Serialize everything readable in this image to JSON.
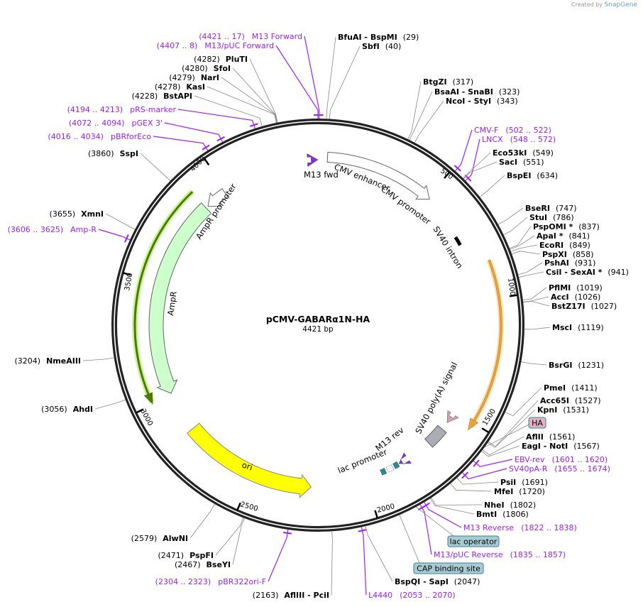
{
  "branding": {
    "created_by": "Created by",
    "logo": "SnapGene"
  },
  "plasmid": {
    "name": "pCMV-GABARα1N-HA",
    "length_label": "4421 bp",
    "length_bp": 4421
  },
  "ticks": [
    {
      "label": "500",
      "bp": 500
    },
    {
      "label": "1000",
      "bp": 1000
    },
    {
      "label": "1500",
      "bp": 1500
    },
    {
      "label": "2000",
      "bp": 2000
    },
    {
      "label": "2500",
      "bp": 2500
    },
    {
      "label": "3000",
      "bp": 3000
    },
    {
      "label": "3500",
      "bp": 3500
    },
    {
      "label": "4000",
      "bp": 4000
    }
  ],
  "labels": [
    {
      "type": "site",
      "name": "BfuAI  - BspMI",
      "pos": "(29)",
      "bp": 29
    },
    {
      "type": "site",
      "name": "SbfI",
      "pos": "(40)",
      "bp": 40
    },
    {
      "type": "site",
      "name": "BtgZI",
      "pos": "(317)",
      "bp": 317
    },
    {
      "type": "site",
      "name": "BsaAI  - SnaBI",
      "pos": "(323)",
      "bp": 323
    },
    {
      "type": "site",
      "name": "NcoI  - StyI",
      "pos": "(343)",
      "bp": 343
    },
    {
      "type": "primer",
      "name": "CMV-F",
      "pos": "(502 .. 522)",
      "bp": 512
    },
    {
      "type": "primer",
      "name": "LNCX",
      "pos": "(548 .. 572)",
      "bp": 560
    },
    {
      "type": "site",
      "name": "Eco53kI",
      "pos": "(549)",
      "bp": 549
    },
    {
      "type": "site",
      "name": "SacI",
      "pos": "(551)",
      "bp": 551
    },
    {
      "type": "site",
      "name": "BspEI",
      "pos": "(634)",
      "bp": 634
    },
    {
      "type": "site",
      "name": "BseRI",
      "pos": "(747)",
      "bp": 747
    },
    {
      "type": "site",
      "name": "StuI",
      "pos": "(786)",
      "bp": 786
    },
    {
      "type": "site",
      "name": "PspOMI *",
      "pos": "(837)",
      "bp": 837
    },
    {
      "type": "site",
      "name": "ApaI *",
      "pos": "(841)",
      "bp": 841
    },
    {
      "type": "site",
      "name": "EcoRI",
      "pos": "(849)",
      "bp": 849
    },
    {
      "type": "site",
      "name": "PspXI",
      "pos": "(858)",
      "bp": 858
    },
    {
      "type": "site",
      "name": "PshAI",
      "pos": "(931)",
      "bp": 931
    },
    {
      "type": "site",
      "name": "CsiI  - SexAI *",
      "pos": "(941)",
      "bp": 941
    },
    {
      "type": "site",
      "name": "PflMI",
      "pos": "(1019)",
      "bp": 1019
    },
    {
      "type": "site",
      "name": "AccI",
      "pos": "(1026)",
      "bp": 1026
    },
    {
      "type": "site",
      "name": "BstZ17I",
      "pos": "(1027)",
      "bp": 1027
    },
    {
      "type": "site",
      "name": "MscI",
      "pos": "(1119)",
      "bp": 1119
    },
    {
      "type": "site",
      "name": "BsrGI",
      "pos": "(1231)",
      "bp": 1231
    },
    {
      "type": "site",
      "name": "PmeI",
      "pos": "(1411)",
      "bp": 1411
    },
    {
      "type": "site",
      "name": "Acc65I",
      "pos": "(1527)",
      "bp": 1527
    },
    {
      "type": "site",
      "name": "KpnI",
      "pos": "(1531)",
      "bp": 1531
    },
    {
      "type": "site",
      "name": "AflII",
      "pos": "(1561)",
      "bp": 1561
    },
    {
      "type": "site",
      "name": "EagI  - NotI",
      "pos": "(1567)",
      "bp": 1567
    },
    {
      "type": "primer",
      "name": "EBV-rev",
      "pos": "(1601 .. 1620)",
      "bp": 1610
    },
    {
      "type": "primer",
      "name": "SV40pA-R",
      "pos": "(1655 .. 1674)",
      "bp": 1665
    },
    {
      "type": "site",
      "name": "PsiI",
      "pos": "(1691)",
      "bp": 1691
    },
    {
      "type": "site",
      "name": "MfeI",
      "pos": "(1720)",
      "bp": 1720
    },
    {
      "type": "site",
      "name": "NheI",
      "pos": "(1802)",
      "bp": 1802
    },
    {
      "type": "site",
      "name": "BmtI",
      "pos": "(1806)",
      "bp": 1806
    },
    {
      "type": "primer",
      "name": "M13 Reverse",
      "pos": "(1822 .. 1838)",
      "bp": 1830
    },
    {
      "type": "primer",
      "name": "M13/pUC Reverse",
      "pos": "(1835 .. 1857)",
      "bp": 1846
    },
    {
      "type": "site",
      "name": "BspQI  - SapI",
      "pos": "(2047)",
      "bp": 2047
    },
    {
      "type": "primer",
      "name": "L4440",
      "pos": "(2053 .. 2070)",
      "bp": 2061
    },
    {
      "type": "site",
      "name": "AflIII  - PciI",
      "pos": "(2163)",
      "bp": 2163
    },
    {
      "type": "primer",
      "name": "pBR322ori-F",
      "pos": "(2304 .. 2323)",
      "bp": 2313
    },
    {
      "type": "site",
      "name": "BseYI",
      "pos": "(2467)",
      "bp": 2467
    },
    {
      "type": "site",
      "name": "PspFI",
      "pos": "(2471)",
      "bp": 2471
    },
    {
      "type": "site",
      "name": "AlwNI",
      "pos": "(2579)",
      "bp": 2579
    },
    {
      "type": "site",
      "name": "AhdI",
      "pos": "(3056)",
      "bp": 3056
    },
    {
      "type": "site",
      "name": "NmeAIII",
      "pos": "(3204)",
      "bp": 3204
    },
    {
      "type": "primer",
      "name": "Amp-R",
      "pos": "(3606 .. 3625)",
      "bp": 3615
    },
    {
      "type": "site",
      "name": "XmnI",
      "pos": "(3655)",
      "bp": 3655
    },
    {
      "type": "site",
      "name": "SspI",
      "pos": "(3860)",
      "bp": 3860
    },
    {
      "type": "primer",
      "name": "pBRforEco",
      "pos": "(4016 .. 4034)",
      "bp": 4025
    },
    {
      "type": "primer",
      "name": "pGEX 3'",
      "pos": "(4072 .. 4094)",
      "bp": 4083
    },
    {
      "type": "primer",
      "name": "pRS-marker",
      "pos": "(4194 .. 4213)",
      "bp": 4203
    },
    {
      "type": "site",
      "name": "BstAPI",
      "pos": "(4228)",
      "bp": 4228
    },
    {
      "type": "site",
      "name": "KasI",
      "pos": "(4278)",
      "bp": 4278
    },
    {
      "type": "site",
      "name": "NarI",
      "pos": "(4279)",
      "bp": 4279
    },
    {
      "type": "site",
      "name": "SfoI",
      "pos": "(4280)",
      "bp": 4280
    },
    {
      "type": "site",
      "name": "PluTI",
      "pos": "(4282)",
      "bp": 4282
    },
    {
      "type": "primer",
      "name": "M13/pUC Forward",
      "pos": "(4407 .. 8)",
      "bp": 4421
    },
    {
      "type": "primer",
      "name": "M13 Forward",
      "pos": "(4421 .. 17)",
      "bp": 4
    },
    {
      "type": "site",
      "name": "PsiI",
      "pos": "",
      "bp": -1
    }
  ],
  "feature_tags": [
    {
      "name": "HA",
      "bp": 1550,
      "color": "#e3b3c4"
    },
    {
      "name": "lac operator",
      "bp": 1862,
      "color": "#a9ccd4"
    },
    {
      "name": "CAP binding site",
      "bp": 1925,
      "color": "#a9ccd4"
    }
  ],
  "features": {
    "cmv_enhancer": "CMV enhancer",
    "cmv_promoter": "CMV promoter",
    "m13_fwd": "M13 fwd",
    "sv40_intron": "SV40 intron",
    "sv40_polya": "SV40 poly(A) signal",
    "m13_rev": "M13 rev",
    "lac_promoter": "lac promoter",
    "ori": "ori",
    "ampr": "AmpR",
    "ampr_promoter": "AmpR promoter"
  },
  "colors": {
    "primer": "#a020f0",
    "ori": "#ffff00",
    "ampr": "#ccffcc",
    "insert": "#e8a33a",
    "amp_line": "#4a7a00"
  }
}
